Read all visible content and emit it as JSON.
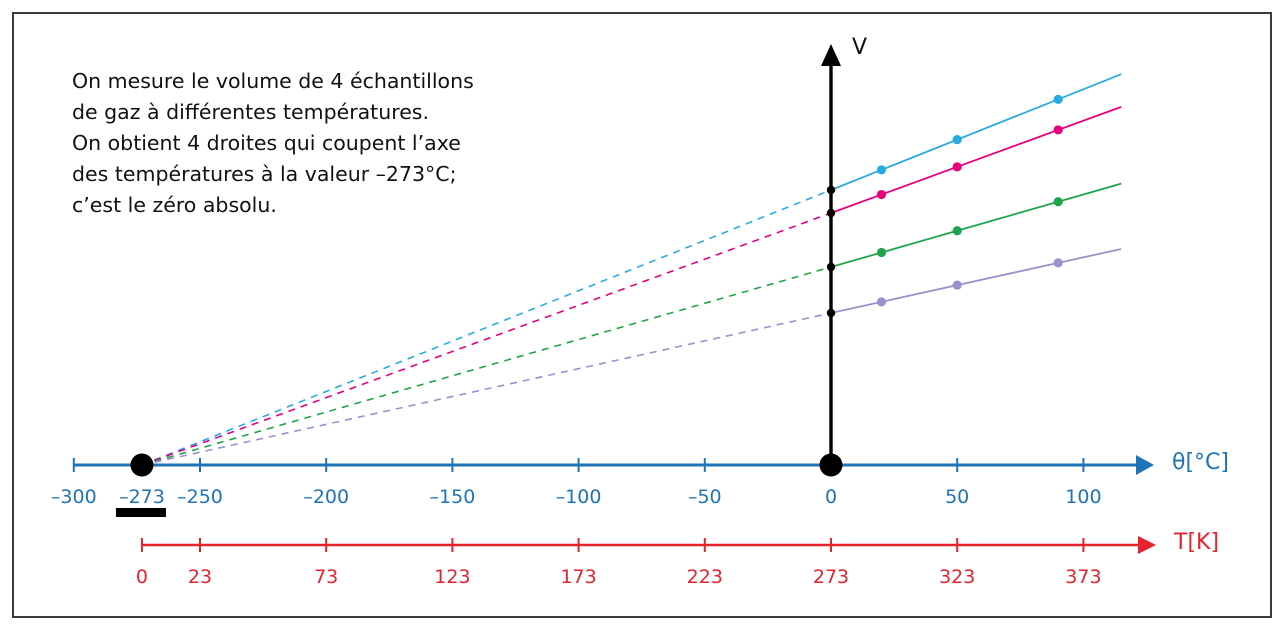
{
  "note_lines": [
    "On mesure le volume de 4 échantillons",
    "de gaz à différentes températures.",
    "On obtient 4 droites qui coupent l’axe",
    "des températures à la valeur –273°C;",
    "c’est le zéro absolu."
  ],
  "chart_data": {
    "type": "line",
    "colors": {
      "celsius_axis": "#1f74b8",
      "kelvin_axis": "#e4232d",
      "volume_axis": "#000000",
      "absolute_zero_marker": "#000000"
    },
    "x_axis_celsius": {
      "label": "θ[°C]",
      "range": [
        -300,
        115
      ],
      "ticks": [
        -300,
        -250,
        -200,
        -150,
        -100,
        -50,
        0,
        50,
        100
      ],
      "tick_labels": [
        "–300",
        "–250",
        "–200",
        "–150",
        "–100",
        "–50",
        "0",
        "50",
        "100"
      ],
      "highlight_value": -273,
      "highlight_label": "–273"
    },
    "x_axis_kelvin": {
      "label": "T[K]",
      "range": [
        0,
        388
      ],
      "ticks": [
        0,
        23,
        73,
        123,
        173,
        223,
        273,
        323,
        373
      ],
      "tick_labels": [
        "0",
        "23",
        "73",
        "123",
        "173",
        "223",
        "273",
        "323",
        "373"
      ]
    },
    "y_axis": {
      "label": "V"
    },
    "absolute_zero_celsius": -273,
    "series": [
      {
        "color": "#29abe2",
        "v0": 275,
        "slope": 1.0073,
        "measured_x": [
          0,
          20,
          50,
          90
        ],
        "extrapolated_to": -273,
        "line_end_x": 115
      },
      {
        "color": "#e6007e",
        "v0": 252,
        "slope": 0.9231,
        "measured_x": [
          0,
          20,
          50,
          90
        ],
        "extrapolated_to": -273,
        "line_end_x": 115
      },
      {
        "color": "#1fa54a",
        "v0": 198,
        "slope": 0.7253,
        "measured_x": [
          0,
          20,
          50,
          90
        ],
        "extrapolated_to": -273,
        "line_end_x": 115
      },
      {
        "color": "#9b8fcc",
        "v0": 152,
        "slope": 0.5568,
        "measured_x": [
          0,
          20,
          50,
          90
        ],
        "extrapolated_to": -273,
        "line_end_x": 115
      }
    ]
  }
}
